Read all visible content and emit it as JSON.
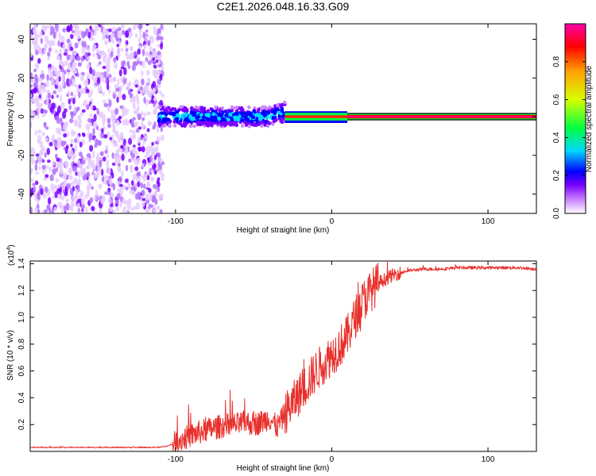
{
  "title": "C2E1.2026.048.16.33.G09",
  "chart_data": [
    {
      "type": "heatmap",
      "xlabel": "Height of straight line (km)",
      "ylabel": "Frequency (Hz)",
      "xlim": [
        -193,
        131
      ],
      "ylim": [
        -50,
        48
      ],
      "xticks": [
        -100,
        0,
        100
      ],
      "yticks": [
        -40,
        -20,
        0,
        20,
        40
      ],
      "colorbar": {
        "label": "Normalized spectral amplitude",
        "range": [
          0,
          1
        ],
        "ticks": [
          "0.0",
          "0.2",
          "0.4",
          "0.6",
          "0.8"
        ],
        "colors": [
          "#ffffff",
          "#cc88ff",
          "#7a00ff",
          "#0000ff",
          "#00d8ff",
          "#00ff40",
          "#d8ff00",
          "#ffa000",
          "#ff0000",
          "#ff00aa"
        ]
      },
      "regions": [
        {
          "name": "noise",
          "x_range": [
            -193,
            -108
          ],
          "freq_range": [
            -50,
            48
          ],
          "amplitude": "0.0-0.2"
        },
        {
          "name": "broadened signal",
          "x_range": [
            -111,
            -30
          ],
          "freq_center": 0,
          "freq_halfwidth": 5,
          "amplitude": "0.1-0.4"
        },
        {
          "name": "narrow signal",
          "x_range": [
            -30,
            10
          ],
          "freq_center": 0,
          "freq_halfwidth": 2,
          "amplitude": "0.6-0.9"
        },
        {
          "name": "steady tone",
          "x_range": [
            10,
            131
          ],
          "freq_center": 0,
          "freq_halfwidth": 1.5,
          "amplitude": "0.9-1.0"
        }
      ]
    },
    {
      "type": "line",
      "xlabel": "Height of straight line (km)",
      "ylabel": "SNR (10 * v/v)",
      "yscale_label": "(x10",
      "yscale_exp": "4",
      "yscale_close": ")",
      "xlim": [
        -193,
        131
      ],
      "ylim": [
        0,
        1.42
      ],
      "xticks": [
        -100,
        0,
        100
      ],
      "yticks": [
        0.2,
        0.4,
        0.6,
        0.8,
        1.0,
        1.2,
        1.4
      ],
      "color": "#e8302c",
      "series": [
        {
          "name": "SNR",
          "x": [
            -193,
            -150,
            -110,
            -102,
            -98,
            -90,
            -80,
            -70,
            -60,
            -55,
            -50,
            -45,
            -40,
            -35,
            -30,
            -25,
            -20,
            -15,
            -10,
            -5,
            0,
            5,
            10,
            15,
            20,
            25,
            30,
            40,
            50,
            60,
            70,
            80,
            90,
            100,
            110,
            120,
            131
          ],
          "y": [
            0.03,
            0.03,
            0.03,
            0.05,
            0.08,
            0.12,
            0.16,
            0.19,
            0.2,
            0.22,
            0.2,
            0.22,
            0.25,
            0.18,
            0.28,
            0.36,
            0.44,
            0.52,
            0.6,
            0.66,
            0.72,
            0.78,
            0.86,
            1.0,
            1.12,
            1.2,
            1.26,
            1.32,
            1.35,
            1.36,
            1.36,
            1.37,
            1.37,
            1.37,
            1.37,
            1.37,
            1.36
          ]
        }
      ]
    }
  ]
}
